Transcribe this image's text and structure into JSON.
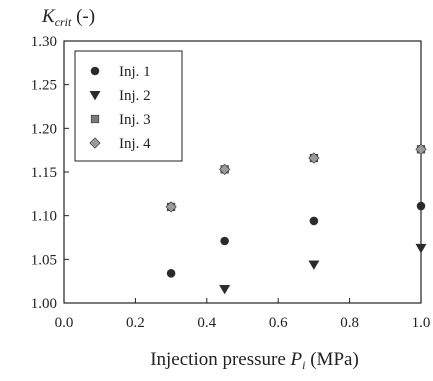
{
  "chart_data": {
    "type": "scatter",
    "ylabel": {
      "base": "K",
      "sub": "crit",
      "unit": " (-)"
    },
    "xlabel": {
      "prefix": "Injection pressure ",
      "var": "P",
      "sub": "i",
      "suffix": " (MPa)"
    },
    "xlim": [
      0.0,
      1.0
    ],
    "ylim": [
      1.0,
      1.3
    ],
    "xticks": [
      "0.0",
      "0.2",
      "0.4",
      "0.6",
      "0.8",
      "1.0"
    ],
    "yticks": [
      "1.00",
      "1.05",
      "1.10",
      "1.15",
      "1.20",
      "1.25",
      "1.30"
    ],
    "grid": false,
    "legend_position": "top-left",
    "series": [
      {
        "name": "Inj. 1",
        "marker": "circle",
        "color": "#2a2a2a",
        "x": [
          0.3,
          0.45,
          0.7,
          1.0
        ],
        "y": [
          1.034,
          1.071,
          1.094,
          1.111
        ]
      },
      {
        "name": "Inj. 2",
        "marker": "triangle-down",
        "color": "#2a2a2a",
        "x": [
          0.45,
          0.7,
          1.0
        ],
        "y": [
          1.016,
          1.044,
          1.063
        ]
      },
      {
        "name": "Inj. 3",
        "marker": "square",
        "color": "#7a7a7a",
        "x": [
          0.3,
          0.45,
          0.7,
          1.0
        ],
        "y": [
          1.11,
          1.153,
          1.166,
          1.176
        ]
      },
      {
        "name": "Inj. 4",
        "marker": "diamond",
        "color": "#9a9a9a",
        "x": [
          0.3,
          0.45,
          0.7,
          1.0
        ],
        "y": [
          1.11,
          1.153,
          1.166,
          1.176
        ]
      }
    ]
  }
}
